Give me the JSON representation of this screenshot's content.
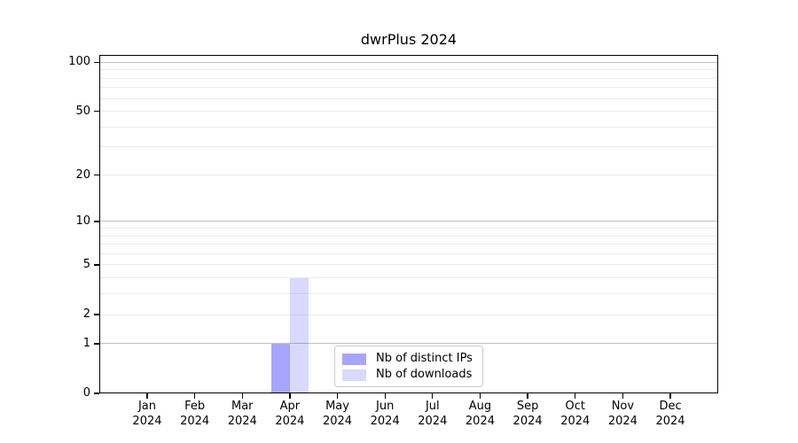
{
  "chart_data": {
    "type": "bar",
    "title": "dwrPlus 2024",
    "categories": [
      "Jan 2024",
      "Feb 2024",
      "Mar 2024",
      "Apr 2024",
      "May 2024",
      "Jun 2024",
      "Jul 2024",
      "Aug 2024",
      "Sep 2024",
      "Oct 2024",
      "Nov 2024",
      "Dec 2024"
    ],
    "series": [
      {
        "name": "Nb of distinct IPs",
        "color": "#0000ff59",
        "values": [
          0,
          0,
          0,
          1,
          0,
          0,
          0,
          0,
          0,
          0,
          0,
          0
        ]
      },
      {
        "name": "Nb of downloads",
        "color": "#0000ff26",
        "values": [
          0,
          0,
          0,
          4,
          0,
          0,
          0,
          0,
          0,
          0,
          0,
          0
        ]
      }
    ],
    "yscale": "log1p",
    "ylim": [
      0,
      111
    ],
    "yticks": [
      0,
      1,
      2,
      5,
      10,
      20,
      50,
      100
    ],
    "grid": true,
    "grid_major": [
      1,
      10,
      100
    ],
    "grid_minor": [
      2,
      3,
      4,
      5,
      6,
      7,
      8,
      9,
      20,
      30,
      40,
      50,
      60,
      70,
      80,
      90
    ],
    "legend_position": "lower center",
    "colors": {
      "grid_major": "#c0c0c0",
      "grid_minor": "#ebebeb",
      "axis": "#000000",
      "text": "#000000",
      "background": "#ffffff",
      "legend_border": "#cccccc"
    }
  }
}
